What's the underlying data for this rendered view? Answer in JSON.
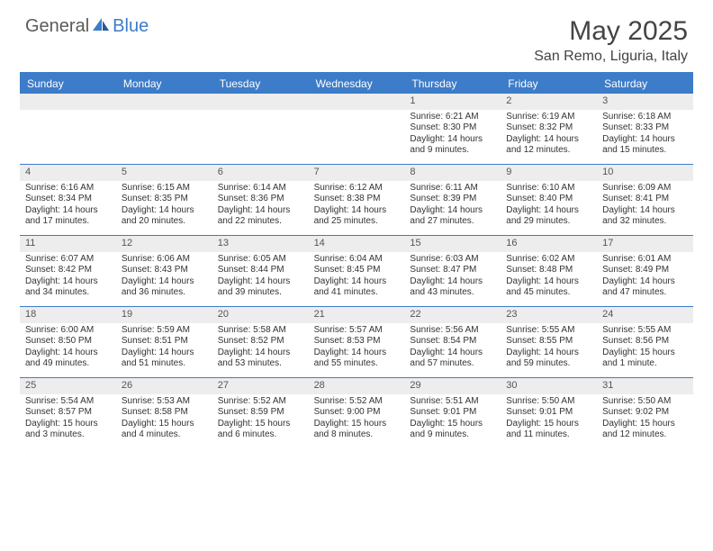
{
  "brand": {
    "general": "General",
    "blue": "Blue"
  },
  "title": "May 2025",
  "location": "San Remo, Liguria, Italy",
  "colors": {
    "accent": "#3d7cc9",
    "header_text": "#ffffff",
    "daynum_bg": "#ededed",
    "body_text": "#333333",
    "title_text": "#444444"
  },
  "day_names": [
    "Sunday",
    "Monday",
    "Tuesday",
    "Wednesday",
    "Thursday",
    "Friday",
    "Saturday"
  ],
  "weeks": [
    [
      {
        "blank": true
      },
      {
        "blank": true
      },
      {
        "blank": true
      },
      {
        "blank": true
      },
      {
        "n": "1",
        "sr": "Sunrise: 6:21 AM",
        "ss": "Sunset: 8:30 PM",
        "d1": "Daylight: 14 hours",
        "d2": "and 9 minutes."
      },
      {
        "n": "2",
        "sr": "Sunrise: 6:19 AM",
        "ss": "Sunset: 8:32 PM",
        "d1": "Daylight: 14 hours",
        "d2": "and 12 minutes."
      },
      {
        "n": "3",
        "sr": "Sunrise: 6:18 AM",
        "ss": "Sunset: 8:33 PM",
        "d1": "Daylight: 14 hours",
        "d2": "and 15 minutes."
      }
    ],
    [
      {
        "n": "4",
        "sr": "Sunrise: 6:16 AM",
        "ss": "Sunset: 8:34 PM",
        "d1": "Daylight: 14 hours",
        "d2": "and 17 minutes."
      },
      {
        "n": "5",
        "sr": "Sunrise: 6:15 AM",
        "ss": "Sunset: 8:35 PM",
        "d1": "Daylight: 14 hours",
        "d2": "and 20 minutes."
      },
      {
        "n": "6",
        "sr": "Sunrise: 6:14 AM",
        "ss": "Sunset: 8:36 PM",
        "d1": "Daylight: 14 hours",
        "d2": "and 22 minutes."
      },
      {
        "n": "7",
        "sr": "Sunrise: 6:12 AM",
        "ss": "Sunset: 8:38 PM",
        "d1": "Daylight: 14 hours",
        "d2": "and 25 minutes."
      },
      {
        "n": "8",
        "sr": "Sunrise: 6:11 AM",
        "ss": "Sunset: 8:39 PM",
        "d1": "Daylight: 14 hours",
        "d2": "and 27 minutes."
      },
      {
        "n": "9",
        "sr": "Sunrise: 6:10 AM",
        "ss": "Sunset: 8:40 PM",
        "d1": "Daylight: 14 hours",
        "d2": "and 29 minutes."
      },
      {
        "n": "10",
        "sr": "Sunrise: 6:09 AM",
        "ss": "Sunset: 8:41 PM",
        "d1": "Daylight: 14 hours",
        "d2": "and 32 minutes."
      }
    ],
    [
      {
        "n": "11",
        "sr": "Sunrise: 6:07 AM",
        "ss": "Sunset: 8:42 PM",
        "d1": "Daylight: 14 hours",
        "d2": "and 34 minutes."
      },
      {
        "n": "12",
        "sr": "Sunrise: 6:06 AM",
        "ss": "Sunset: 8:43 PM",
        "d1": "Daylight: 14 hours",
        "d2": "and 36 minutes."
      },
      {
        "n": "13",
        "sr": "Sunrise: 6:05 AM",
        "ss": "Sunset: 8:44 PM",
        "d1": "Daylight: 14 hours",
        "d2": "and 39 minutes."
      },
      {
        "n": "14",
        "sr": "Sunrise: 6:04 AM",
        "ss": "Sunset: 8:45 PM",
        "d1": "Daylight: 14 hours",
        "d2": "and 41 minutes."
      },
      {
        "n": "15",
        "sr": "Sunrise: 6:03 AM",
        "ss": "Sunset: 8:47 PM",
        "d1": "Daylight: 14 hours",
        "d2": "and 43 minutes."
      },
      {
        "n": "16",
        "sr": "Sunrise: 6:02 AM",
        "ss": "Sunset: 8:48 PM",
        "d1": "Daylight: 14 hours",
        "d2": "and 45 minutes."
      },
      {
        "n": "17",
        "sr": "Sunrise: 6:01 AM",
        "ss": "Sunset: 8:49 PM",
        "d1": "Daylight: 14 hours",
        "d2": "and 47 minutes."
      }
    ],
    [
      {
        "n": "18",
        "sr": "Sunrise: 6:00 AM",
        "ss": "Sunset: 8:50 PM",
        "d1": "Daylight: 14 hours",
        "d2": "and 49 minutes."
      },
      {
        "n": "19",
        "sr": "Sunrise: 5:59 AM",
        "ss": "Sunset: 8:51 PM",
        "d1": "Daylight: 14 hours",
        "d2": "and 51 minutes."
      },
      {
        "n": "20",
        "sr": "Sunrise: 5:58 AM",
        "ss": "Sunset: 8:52 PM",
        "d1": "Daylight: 14 hours",
        "d2": "and 53 minutes."
      },
      {
        "n": "21",
        "sr": "Sunrise: 5:57 AM",
        "ss": "Sunset: 8:53 PM",
        "d1": "Daylight: 14 hours",
        "d2": "and 55 minutes."
      },
      {
        "n": "22",
        "sr": "Sunrise: 5:56 AM",
        "ss": "Sunset: 8:54 PM",
        "d1": "Daylight: 14 hours",
        "d2": "and 57 minutes."
      },
      {
        "n": "23",
        "sr": "Sunrise: 5:55 AM",
        "ss": "Sunset: 8:55 PM",
        "d1": "Daylight: 14 hours",
        "d2": "and 59 minutes."
      },
      {
        "n": "24",
        "sr": "Sunrise: 5:55 AM",
        "ss": "Sunset: 8:56 PM",
        "d1": "Daylight: 15 hours",
        "d2": "and 1 minute."
      }
    ],
    [
      {
        "n": "25",
        "sr": "Sunrise: 5:54 AM",
        "ss": "Sunset: 8:57 PM",
        "d1": "Daylight: 15 hours",
        "d2": "and 3 minutes."
      },
      {
        "n": "26",
        "sr": "Sunrise: 5:53 AM",
        "ss": "Sunset: 8:58 PM",
        "d1": "Daylight: 15 hours",
        "d2": "and 4 minutes."
      },
      {
        "n": "27",
        "sr": "Sunrise: 5:52 AM",
        "ss": "Sunset: 8:59 PM",
        "d1": "Daylight: 15 hours",
        "d2": "and 6 minutes."
      },
      {
        "n": "28",
        "sr": "Sunrise: 5:52 AM",
        "ss": "Sunset: 9:00 PM",
        "d1": "Daylight: 15 hours",
        "d2": "and 8 minutes."
      },
      {
        "n": "29",
        "sr": "Sunrise: 5:51 AM",
        "ss": "Sunset: 9:01 PM",
        "d1": "Daylight: 15 hours",
        "d2": "and 9 minutes."
      },
      {
        "n": "30",
        "sr": "Sunrise: 5:50 AM",
        "ss": "Sunset: 9:01 PM",
        "d1": "Daylight: 15 hours",
        "d2": "and 11 minutes."
      },
      {
        "n": "31",
        "sr": "Sunrise: 5:50 AM",
        "ss": "Sunset: 9:02 PM",
        "d1": "Daylight: 15 hours",
        "d2": "and 12 minutes."
      }
    ]
  ]
}
